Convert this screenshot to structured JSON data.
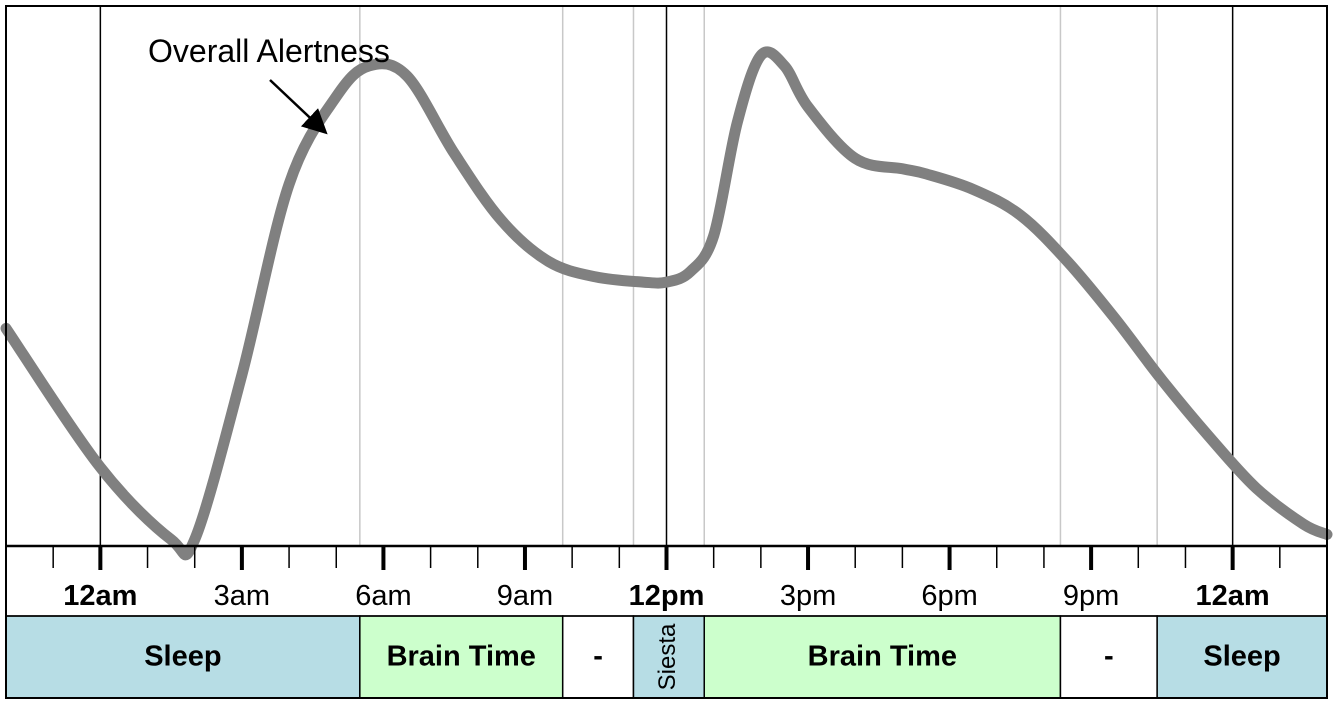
{
  "chart_data": {
    "type": "line",
    "title": "",
    "xlabel": "",
    "ylabel": "",
    "x_unit": "hours since 12am (day 1)",
    "xlim": [
      -2,
      26
    ],
    "ylim": [
      0,
      1
    ],
    "grid": false,
    "legend": "none",
    "series": [
      {
        "color": "#808080",
        "x": [
          -2,
          0,
          1.5,
          2,
          3,
          4,
          5,
          5.7,
          6.5,
          7.5,
          8.5,
          9.5,
          10.5,
          11.5,
          12,
          12.5,
          13,
          13.5,
          14,
          14.5,
          15,
          16,
          17,
          17.5,
          18.5,
          19.5,
          20.5,
          21.5,
          22.5,
          23.5,
          24.5,
          25.5,
          26
        ],
        "y": [
          0.44,
          0.17,
          0.03,
          0.03,
          0.35,
          0.72,
          0.89,
          0.95,
          0.93,
          0.78,
          0.65,
          0.57,
          0.54,
          0.53,
          0.53,
          0.55,
          0.62,
          0.84,
          0.97,
          0.95,
          0.87,
          0.77,
          0.75,
          0.74,
          0.71,
          0.66,
          0.57,
          0.46,
          0.34,
          0.23,
          0.13,
          0.06,
          0.04
        ]
      }
    ],
    "annotation": {
      "text": "Overall Alertness"
    },
    "tick_labels": [
      {
        "x": 0,
        "label": "12am",
        "bold": true
      },
      {
        "x": 3,
        "label": "3am",
        "bold": false
      },
      {
        "x": 6,
        "label": "6am",
        "bold": false
      },
      {
        "x": 9,
        "label": "9am",
        "bold": false
      },
      {
        "x": 12,
        "label": "12pm",
        "bold": true
      },
      {
        "x": 15,
        "label": "3pm",
        "bold": false
      },
      {
        "x": 18,
        "label": "6pm",
        "bold": false
      },
      {
        "x": 21,
        "label": "9pm",
        "bold": false
      },
      {
        "x": 24,
        "label": "12am",
        "bold": true
      }
    ],
    "major_lines": [
      0,
      12,
      24
    ],
    "bands": [
      {
        "start": -2,
        "end": 5.5,
        "label": "Sleep",
        "color": "#b7dde5",
        "vertical": false
      },
      {
        "start": 5.5,
        "end": 9.8,
        "label": "Brain Time",
        "color": "#ccffcc",
        "vertical": false
      },
      {
        "start": 9.8,
        "end": 11.3,
        "label": "-",
        "color": "#ffffff",
        "vertical": false
      },
      {
        "start": 11.3,
        "end": 12.8,
        "label": "Siesta",
        "color": "#b7dde5",
        "vertical": true
      },
      {
        "start": 12.8,
        "end": 20.35,
        "label": "Brain Time",
        "color": "#ccffcc",
        "vertical": false
      },
      {
        "start": 20.35,
        "end": 22.4,
        "label": "-",
        "color": "#ffffff",
        "vertical": false
      },
      {
        "start": 22.4,
        "end": 26,
        "label": "Sleep",
        "color": "#b7dde5",
        "vertical": false
      }
    ]
  }
}
